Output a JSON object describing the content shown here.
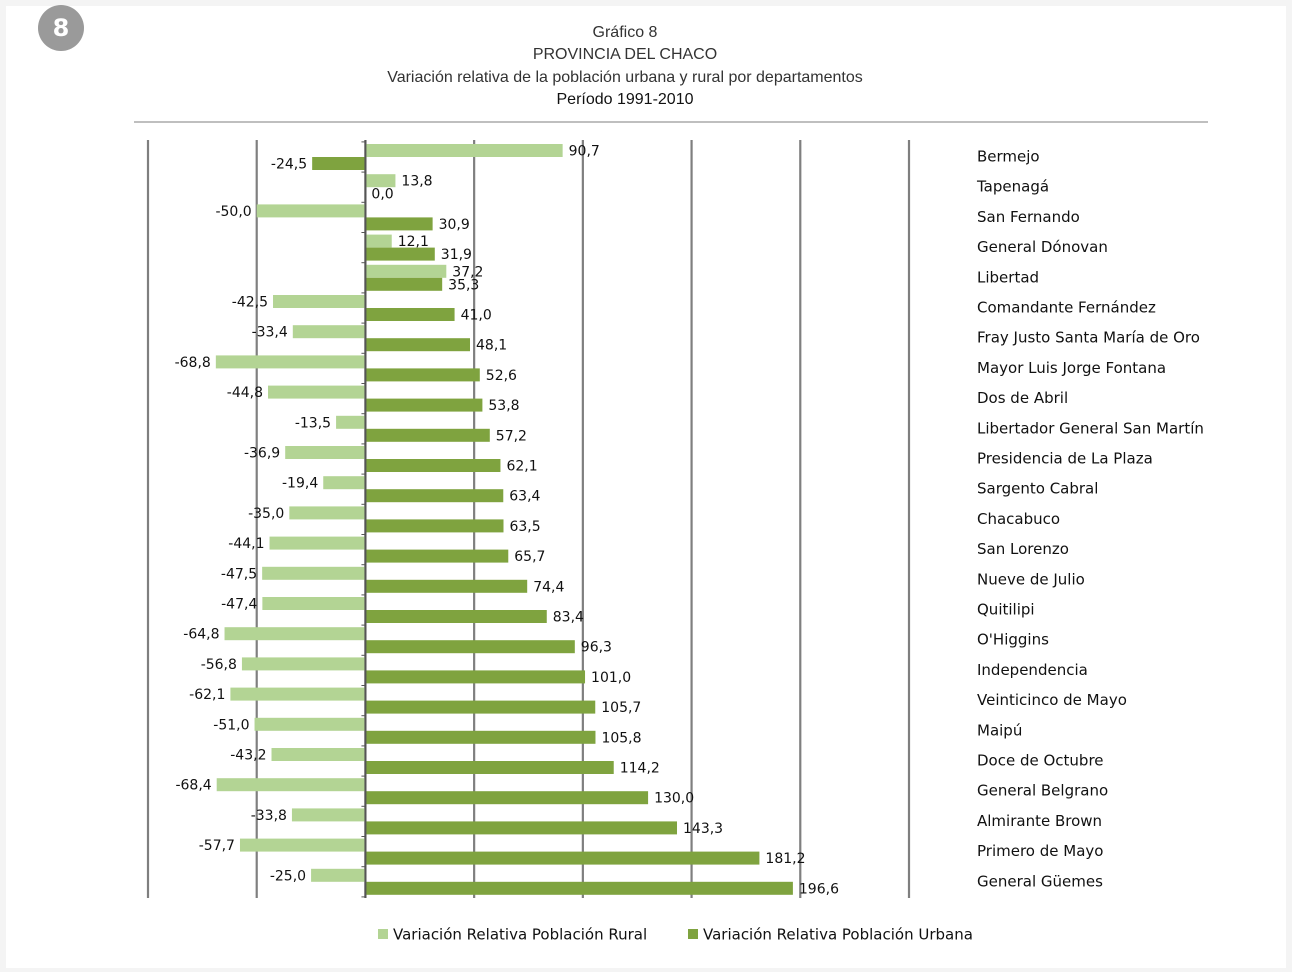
{
  "badge": "8",
  "chart_data": {
    "type": "hbar",
    "title": "Gráfico 8",
    "subtitle": "PROVINCIA DEL CHACO",
    "description": "Variación relativa de la población urbana y rural por departamentos",
    "period": "Período 1991-2010",
    "categories": [
      "Bermejo",
      "Tapenagá",
      "San Fernando",
      "General Dónovan",
      "Libertad",
      "Comandante Fernández",
      "Fray Justo Santa María de Oro",
      "Mayor Luis Jorge Fontana",
      "Dos de Abril",
      "Libertador General San Martín",
      "Presidencia de La Plaza",
      "Sargento Cabral",
      "Chacabuco",
      "San Lorenzo",
      "Nueve de Julio",
      "Quitilipi",
      "O'Higgins",
      "Independencia",
      "Veinticinco de Mayo",
      "Maipú",
      "Doce de Octubre",
      "General Belgrano",
      "Almirante Brown",
      "Primero de Mayo",
      "General Güemes"
    ],
    "series": [
      {
        "name": "Variación Relativa Población Rural",
        "color": "#b3d494",
        "values": [
          90.7,
          13.8,
          -50.0,
          12.1,
          37.2,
          -42.5,
          -33.4,
          -68.8,
          -44.8,
          -13.5,
          -36.9,
          -19.4,
          -35.0,
          -44.1,
          -47.5,
          -47.4,
          -64.8,
          -56.8,
          -62.1,
          -51.0,
          -43.2,
          -68.4,
          -33.8,
          -57.7,
          -25.0
        ],
        "value_labels": [
          "90,7",
          "13,8",
          "-50,0",
          "12,1",
          "37,2",
          "-42,5",
          "-33,4",
          "-68,8",
          "-44,8",
          "-13,5",
          "-36,9",
          "-19,4",
          "-35,0",
          "-44,1",
          "-47,5",
          "-47,4",
          "-64,8",
          "-56,8",
          "-62,1",
          "-51,0",
          "-43,2",
          "-68,4",
          "-33,8",
          "-57,7",
          "-25,0"
        ]
      },
      {
        "name": "Variación Relativa Población Urbana",
        "color": "#7fa33f",
        "values": [
          -24.5,
          0.0,
          30.9,
          31.9,
          35.3,
          41.0,
          48.1,
          52.6,
          53.8,
          57.2,
          62.1,
          63.4,
          63.5,
          65.7,
          74.4,
          83.4,
          96.3,
          101.0,
          105.7,
          105.8,
          114.2,
          130.0,
          143.3,
          181.2,
          196.6
        ],
        "value_labels": [
          "-24,5",
          "0,0",
          "30,9",
          "31,9",
          "35,3",
          "41,0",
          "48,1",
          "52,6",
          "53,8",
          "57,2",
          "62,1",
          "63,4",
          "63,5",
          "65,7",
          "74,4",
          "83,4",
          "96,3",
          "101,0",
          "105,7",
          "105,8",
          "114,2",
          "130,0",
          "143,3",
          "181,2",
          "196,6"
        ]
      }
    ],
    "xlim": [
      -100,
      250
    ],
    "xticks": [
      -100,
      -50,
      0,
      50,
      100,
      150,
      200,
      250
    ],
    "grid": true,
    "legend": "bottom"
  }
}
